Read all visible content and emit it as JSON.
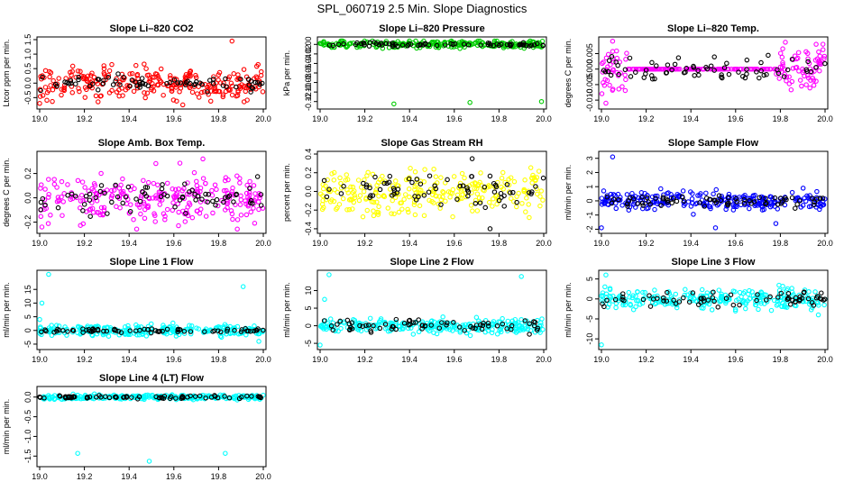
{
  "figure": {
    "title": "SPL_060719  2.5 Min. Slope Diagnostics"
  },
  "colors": {
    "ref_series": "#000000",
    "background": "#ffffff"
  },
  "chart_data": [
    {
      "type": "scatter",
      "title": "Slope Li–820 CO2",
      "xlabel": "",
      "ylabel": "Ltcor ppm per min.",
      "xlim": [
        19.0,
        20.0
      ],
      "ylim": [
        -0.8,
        1.5
      ],
      "xticks": [
        "19.0",
        "19.2",
        "19.4",
        "19.6",
        "19.8",
        "20.0"
      ],
      "yticks": [
        "-0.5",
        "0.0",
        "0.5",
        "1.0",
        "1.5"
      ],
      "color": "#ff0000",
      "series": [
        {
          "values_summary": {
            "center": 0.0,
            "spread": 0.28
          },
          "outliers": [
            [
              19.86,
              1.45
            ],
            [
              19.0,
              -0.7
            ],
            [
              19.64,
              -0.75
            ]
          ]
        },
        {
          "values_summary": {
            "center": 0.0,
            "spread": 0.12
          }
        }
      ]
    },
    {
      "type": "scatter",
      "title": "Slope Li–820 Pressure",
      "xlabel": "",
      "ylabel": "kPa per min.",
      "xlim": [
        19.0,
        20.0
      ],
      "ylim": [
        -0.13,
        0.01
      ],
      "xticks": [
        "19.0",
        "19.2",
        "19.4",
        "19.6",
        "19.8",
        "20.0"
      ],
      "yticks": [
        "-0.12",
        "-0.10",
        "-0.08",
        "-0.06",
        "-0.04",
        "-0.02",
        "0.00"
      ],
      "color": "#00cc00",
      "series": [
        {
          "values_summary": {
            "center": 0.0,
            "spread": 0.004
          },
          "outliers": [
            [
              19.33,
              -0.125
            ],
            [
              19.67,
              -0.122
            ],
            [
              19.99,
              -0.12
            ]
          ]
        },
        {
          "values_summary": {
            "center": 0.0,
            "spread": 0.002
          }
        }
      ]
    },
    {
      "type": "scatter",
      "title": "Slope Li–820 Temp.",
      "xlabel": "",
      "ylabel": "degrees C per min.",
      "xlim": [
        19.0,
        20.0
      ],
      "ylim": [
        -0.012,
        0.0095
      ],
      "xticks": [
        "19.0",
        "19.2",
        "19.4",
        "19.6",
        "19.8",
        "20.0"
      ],
      "yticks": [
        "-0.010",
        "-0.005",
        "0.000",
        "0.005"
      ],
      "color": "#ff00ff",
      "series": [
        {
          "values_summary": {
            "center": 0.0,
            "spread": 0.004,
            "flat_range": [
              19.12,
              19.78
            ]
          },
          "outliers": [
            [
              19.05,
              0.009
            ],
            [
              19.02,
              -0.011
            ],
            [
              19.96,
              0.008
            ]
          ]
        },
        {
          "values_summary": {
            "center": 0.0,
            "spread": 0.002
          }
        }
      ]
    },
    {
      "type": "scatter",
      "title": "Slope Amb. Box Temp.",
      "xlabel": "",
      "ylabel": "degrees C per min.",
      "xlim": [
        19.0,
        20.0
      ],
      "ylim": [
        -0.27,
        0.36
      ],
      "xticks": [
        "19.0",
        "19.2",
        "19.4",
        "19.6",
        "19.8",
        "20.0"
      ],
      "yticks": [
        "-0.2",
        "0.0",
        "0.2"
      ],
      "color": "#ff00ff",
      "series": [
        {
          "values_summary": {
            "center": 0.0,
            "spread": 0.11
          },
          "outliers": [
            [
              19.73,
              0.32
            ],
            [
              19.01,
              -0.24
            ]
          ]
        },
        {
          "values_summary": {
            "center": 0.0,
            "spread": 0.06
          }
        }
      ]
    },
    {
      "type": "scatter",
      "title": "Slope Gas Stream RH",
      "xlabel": "",
      "ylabel": "percent per min.",
      "xlim": [
        19.0,
        20.0
      ],
      "ylim": [
        -0.42,
        0.4
      ],
      "xticks": [
        "19.0",
        "19.2",
        "19.4",
        "19.6",
        "19.8",
        "20.0"
      ],
      "yticks": [
        "-0.4",
        "-0.2",
        "0.0",
        "0.2",
        "0.4"
      ],
      "color": "#ffff00",
      "series": [
        {
          "values_summary": {
            "center": 0.0,
            "spread": 0.12
          }
        },
        {
          "values_summary": {
            "center": 0.0,
            "spread": 0.1
          },
          "outliers": [
            [
              19.68,
              0.35
            ],
            [
              19.76,
              -0.4
            ]
          ]
        }
      ]
    },
    {
      "type": "scatter",
      "title": "Slope Sample Flow",
      "xlabel": "",
      "ylabel": "ml/min per min.",
      "xlim": [
        19.0,
        20.0
      ],
      "ylim": [
        -2.1,
        3.3
      ],
      "xticks": [
        "19.0",
        "19.2",
        "19.4",
        "19.6",
        "19.8",
        "20.0"
      ],
      "yticks": [
        "-2",
        "-1",
        "0",
        "1",
        "2",
        "3"
      ],
      "color": "#0000ff",
      "series": [
        {
          "values_summary": {
            "center": 0.0,
            "spread": 0.3
          },
          "outliers": [
            [
              19.05,
              3.1
            ],
            [
              19.0,
              -1.9
            ],
            [
              19.51,
              -1.9
            ],
            [
              19.78,
              -1.6
            ]
          ]
        },
        {
          "values_summary": {
            "center": 0.0,
            "spread": 0.2
          }
        }
      ]
    },
    {
      "type": "scatter",
      "title": "Slope Line 1 Flow",
      "xlabel": "",
      "ylabel": "ml/min per min.",
      "xlim": [
        19.0,
        20.0
      ],
      "ylim": [
        -6,
        21
      ],
      "xticks": [
        "19.0",
        "19.2",
        "19.4",
        "19.6",
        "19.8",
        "20.0"
      ],
      "yticks": [
        "-5",
        "0",
        "5",
        "10",
        "15"
      ],
      "color": "#00ffff",
      "series": [
        {
          "values_summary": {
            "center": 0.0,
            "spread": 1.0
          },
          "outliers": [
            [
              19.04,
              20.5
            ],
            [
              19.01,
              10
            ],
            [
              19.0,
              4
            ],
            [
              19.91,
              16
            ],
            [
              19.98,
              -4
            ]
          ]
        },
        {
          "values_summary": {
            "center": 0.0,
            "spread": 0.4
          }
        }
      ]
    },
    {
      "type": "scatter",
      "title": "Slope Line 2 Flow",
      "xlabel": "",
      "ylabel": "ml/min per min.",
      "xlim": [
        19.0,
        20.0
      ],
      "ylim": [
        -6,
        15
      ],
      "xticks": [
        "19.0",
        "19.2",
        "19.4",
        "19.6",
        "19.8",
        "20.0"
      ],
      "yticks": [
        "-5",
        "0",
        "5",
        "10"
      ],
      "color": "#00ffff",
      "series": [
        {
          "values_summary": {
            "center": 0.0,
            "spread": 1.0
          },
          "outliers": [
            [
              19.04,
              14.5
            ],
            [
              19.02,
              7.5
            ],
            [
              19.0,
              -5.5
            ],
            [
              19.9,
              14
            ]
          ]
        },
        {
          "values_summary": {
            "center": 0.0,
            "spread": 0.8
          }
        }
      ]
    },
    {
      "type": "scatter",
      "title": "Slope Line 3 Flow",
      "xlabel": "",
      "ylabel": "ml/min per min.",
      "xlim": [
        19.0,
        20.0
      ],
      "ylim": [
        -12,
        6.5
      ],
      "xticks": [
        "19.0",
        "19.2",
        "19.4",
        "19.6",
        "19.8",
        "20.0"
      ],
      "yticks": [
        "-10",
        "-5",
        "0",
        "5"
      ],
      "color": "#00ffff",
      "series": [
        {
          "values_summary": {
            "center": 0.0,
            "spread": 1.2
          },
          "outliers": [
            [
              19.02,
              6
            ],
            [
              19.0,
              -11.5
            ],
            [
              19.97,
              -4
            ]
          ]
        },
        {
          "values_summary": {
            "center": 0.0,
            "spread": 0.9
          }
        }
      ]
    },
    {
      "type": "scatter",
      "title": "Slope Line 4 (LT) Flow",
      "xlabel": "",
      "ylabel": "ml/min per min.",
      "xlim": [
        19.0,
        20.0
      ],
      "ylim": [
        -1.7,
        0.2
      ],
      "xticks": [
        "19.0",
        "19.2",
        "19.4",
        "19.6",
        "19.8",
        "20.0"
      ],
      "yticks": [
        "-1.5",
        "-1.0",
        "-0.5",
        "0.0"
      ],
      "color": "#00ffff",
      "series": [
        {
          "values_summary": {
            "center": 0.0,
            "spread": 0.03
          },
          "outliers": [
            [
              19.17,
              -1.43
            ],
            [
              19.49,
              -1.63
            ],
            [
              19.83,
              -1.43
            ]
          ]
        },
        {
          "values_summary": {
            "center": 0.0,
            "spread": 0.02
          }
        }
      ]
    }
  ]
}
